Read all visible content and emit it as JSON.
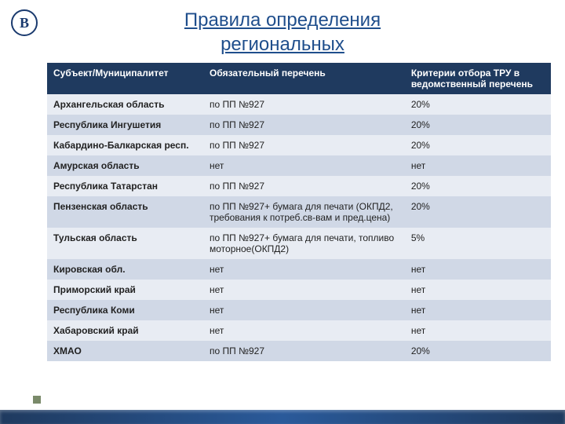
{
  "logo_text": "B",
  "title_line1": " Правила определения",
  "title_line2": "региональных",
  "table": {
    "type": "table",
    "header_bg": "#1f3a5f",
    "header_fg": "#ffffff",
    "row_odd_bg": "#e8ecf3",
    "row_even_bg": "#d0d8e6",
    "font_size": 12,
    "columns": [
      {
        "label": "Субъект/Муниципалитет",
        "width_pct": 31
      },
      {
        "label": "Обязательный перечень",
        "width_pct": 40
      },
      {
        "label": "Критерии отбора ТРУ в ведомственный перечень",
        "width_pct": 29
      }
    ],
    "rows": [
      {
        "region": "Архангельская область",
        "list": "по ПП №927",
        "criteria": "20%"
      },
      {
        "region": "Республика Ингушетия",
        "list": "по ПП №927",
        "criteria": "20%"
      },
      {
        "region": "Кабардино-Балкарская респ.",
        "list": "по ПП №927",
        "criteria": "20%"
      },
      {
        "region": "Амурская область",
        "list": "нет",
        "criteria": "нет"
      },
      {
        "region": "Республика Татарстан",
        "list": "по ПП №927",
        "criteria": "20%"
      },
      {
        "region": "Пензенская область",
        "list": "по ПП №927+ бумага для печати (ОКПД2,  требования к потреб.св-вам и пред.цена)",
        "criteria": "20%"
      },
      {
        "region": "Тульская область",
        "list": "по ПП №927+ бумага для печати, топливо  моторное(ОКПД2)",
        "criteria": "5%"
      },
      {
        "region": "Кировская обл.",
        "list": "нет",
        "criteria": "нет"
      },
      {
        "region": "Приморский край",
        "list": "нет",
        "criteria": "нет"
      },
      {
        "region": "Республика Коми",
        "list": "нет",
        "criteria": "нет"
      },
      {
        "region": "Хабаровский край",
        "list": "нет",
        "criteria": "нет"
      },
      {
        "region": "ХМАО",
        "list": "по ПП №927",
        "criteria": "20%"
      }
    ]
  },
  "colors": {
    "title": "#1f4e8c",
    "logo_border": "#1a3a6e",
    "stripe_start": "#1f3a5f",
    "stripe_mid": "#2a5a9a",
    "bullet": "#7a8a6a"
  }
}
